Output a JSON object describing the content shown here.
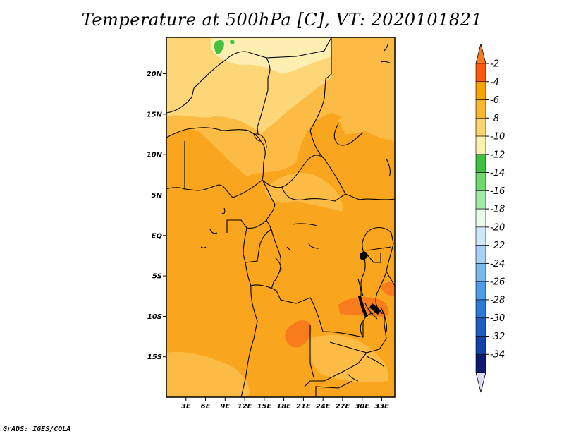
{
  "title": "Temperature at 500hPa [C], VT: 2020101821",
  "footer": "GrADS: IGES/COLA",
  "map": {
    "lon_range": [
      0,
      35
    ],
    "lat_range": [
      -20,
      24.5
    ],
    "lat_ticks": [
      {
        "value": 20,
        "label": "20N"
      },
      {
        "value": 15,
        "label": "15N"
      },
      {
        "value": 10,
        "label": "10N"
      },
      {
        "value": 5,
        "label": "5N"
      },
      {
        "value": 0,
        "label": "EQ"
      },
      {
        "value": -5,
        "label": "5S"
      },
      {
        "value": -10,
        "label": "10S"
      },
      {
        "value": -15,
        "label": "15S"
      }
    ],
    "lon_ticks": [
      {
        "value": 3,
        "label": "3E"
      },
      {
        "value": 6,
        "label": "6E"
      },
      {
        "value": 9,
        "label": "9E"
      },
      {
        "value": 12,
        "label": "12E"
      },
      {
        "value": 15,
        "label": "15E"
      },
      {
        "value": 18,
        "label": "18E"
      },
      {
        "value": 21,
        "label": "21E"
      },
      {
        "value": 24,
        "label": "24E"
      },
      {
        "value": 27,
        "label": "27E"
      },
      {
        "value": 30,
        "label": "30E"
      },
      {
        "value": 33,
        "label": "33E"
      }
    ]
  },
  "colorbar": {
    "levels": [
      "-2",
      "-4",
      "-6",
      "-8",
      "-10",
      "-12",
      "-14",
      "-16",
      "-18",
      "-20",
      "-22",
      "-24",
      "-26",
      "-28",
      "-30",
      "-32",
      "-34"
    ],
    "colors": [
      "#fd7a1a",
      "#fc5a08",
      "#f7a300",
      "#f9b72f",
      "#fbd46e",
      "#fdf1b0",
      "#3fc13f",
      "#6ed86e",
      "#a3eba3",
      "#e9fbe9",
      "#cde8f8",
      "#a6d1f4",
      "#7ab8ee",
      "#4e9bea",
      "#2c79d9",
      "#1e5bc2",
      "#1242a8",
      "#0d1a70",
      "#dcdcf6"
    ]
  },
  "fields": {
    "color_main": "#f9a51e",
    "color_light": "#fbbb44",
    "color_pale": "#fdd678",
    "color_yellow": "#fdeeb2",
    "color_warm": "#f87c1c",
    "color_green": "#43c23f"
  }
}
